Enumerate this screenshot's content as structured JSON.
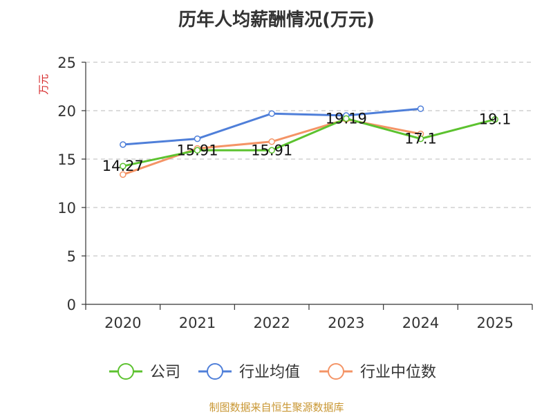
{
  "chart_data": {
    "type": "line",
    "title": "历年人均薪酬情况(万元)",
    "ylabel": "万元",
    "xlabel": "",
    "categories": [
      "2020",
      "2021",
      "2022",
      "2023",
      "2024",
      "2025"
    ],
    "ylim": [
      0,
      25
    ],
    "yticks": [
      0,
      5,
      10,
      15,
      20,
      25
    ],
    "grid": true,
    "legend_position": "bottom",
    "series": [
      {
        "name": "公司",
        "color": "#5cc22f",
        "values": [
          14.27,
          15.91,
          15.91,
          19.19,
          17.1,
          19.1
        ],
        "labels": [
          "14.27",
          "15.91",
          "15.91",
          "19.19",
          "17.1",
          "19.1"
        ]
      },
      {
        "name": "行业均值",
        "color": "#4f7fd9",
        "values": [
          16.5,
          17.1,
          19.7,
          19.5,
          20.2,
          null
        ]
      },
      {
        "name": "行业中位数",
        "color": "#f49466",
        "values": [
          13.4,
          16.1,
          16.8,
          19.1,
          17.6,
          null
        ]
      }
    ]
  },
  "source": "制图数据来自恒生聚源数据库"
}
